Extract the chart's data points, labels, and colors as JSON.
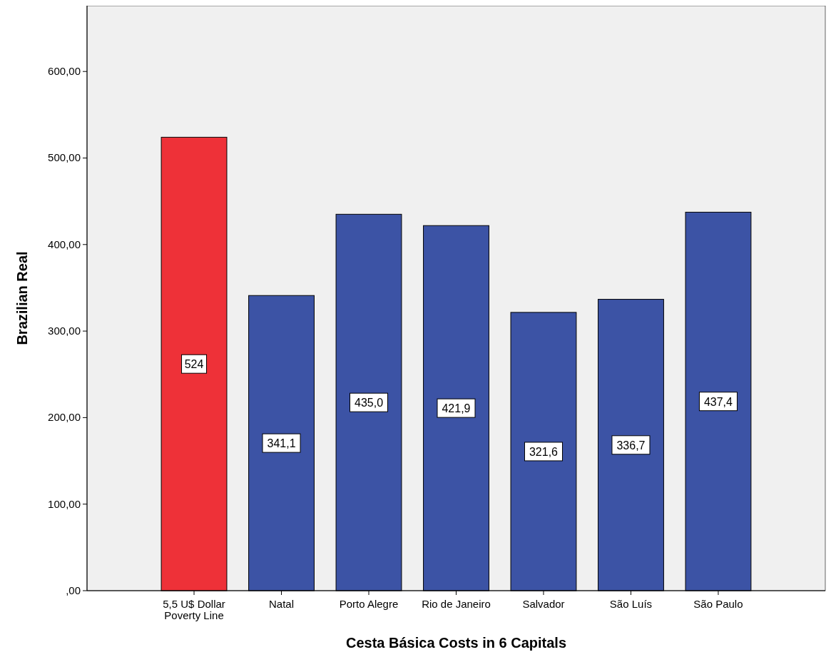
{
  "chart_data": {
    "type": "bar",
    "xlabel": "Cesta Básica Costs in 6 Capitals",
    "ylabel": "Brazilian Real",
    "categories": [
      "5,5 U$ Dollar\nPoverty Line",
      "Natal",
      "Porto Alegre",
      "Rio de Janeiro",
      "Salvador",
      "São Luís",
      "São Paulo"
    ],
    "values": [
      524,
      341.1,
      435.0,
      421.9,
      321.6,
      336.7,
      437.4
    ],
    "colors": [
      "#ee3138",
      "#3c53a5",
      "#3c53a5",
      "#3c53a5",
      "#3c53a5",
      "#3c53a5",
      "#3c53a5"
    ],
    "value_labels": [
      "524",
      "341,1",
      "435,0",
      "421,9",
      "321,6",
      "336,7",
      "437,4"
    ],
    "ylim": [
      0,
      676
    ],
    "yticks": [
      {
        "value": 0,
        "label": ",00"
      },
      {
        "value": 100,
        "label": "100,00"
      },
      {
        "value": 200,
        "label": "200,00"
      },
      {
        "value": 300,
        "label": "300,00"
      },
      {
        "value": 400,
        "label": "400,00"
      },
      {
        "value": 500,
        "label": "500,00"
      },
      {
        "value": 600,
        "label": "600,00"
      }
    ],
    "grid": false
  }
}
